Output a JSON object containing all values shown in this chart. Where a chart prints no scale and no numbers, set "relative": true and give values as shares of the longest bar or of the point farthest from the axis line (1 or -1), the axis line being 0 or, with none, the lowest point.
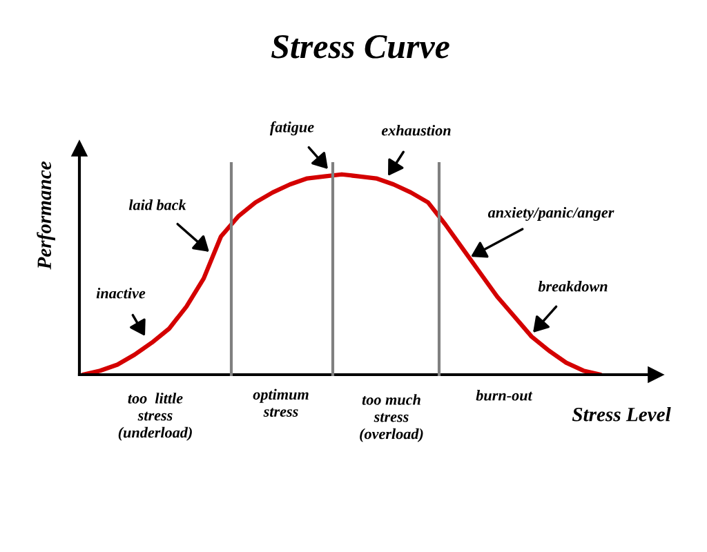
{
  "chart_data": {
    "type": "line",
    "title": "Stress Curve",
    "xlabel": "Stress Level",
    "ylabel": "Performance",
    "relative": true,
    "categories": [
      null,
      null,
      null,
      null,
      null,
      null,
      null,
      null,
      null,
      null,
      null,
      null,
      null,
      null,
      null,
      null,
      null,
      null,
      null,
      null,
      null,
      null,
      null,
      null,
      null,
      null,
      null,
      null,
      null,
      null,
      null
    ],
    "series": [
      {
        "color": "#d40000",
        "values": [
          0,
          0.02,
          0.05,
          0.1,
          0.16,
          0.23,
          0.34,
          0.48,
          0.69,
          0.79,
          0.86,
          0.91,
          0.95,
          0.98,
          0.99,
          1.0,
          0.99,
          0.98,
          0.95,
          0.91,
          0.86,
          0.75,
          0.63,
          0.51,
          0.39,
          0.29,
          0.19,
          0.12,
          0.06,
          0.02,
          0
        ]
      }
    ],
    "annotations": [
      "inactive",
      "laid back",
      "fatigue",
      "exhaustion",
      "anxiety/panic/anger",
      "breakdown",
      "too  little\nstress\n(underload)",
      "optimum\nstress",
      "too much\nstress\n(overload)",
      "burn-out"
    ],
    "marker": "none",
    "line_style": "solid"
  }
}
